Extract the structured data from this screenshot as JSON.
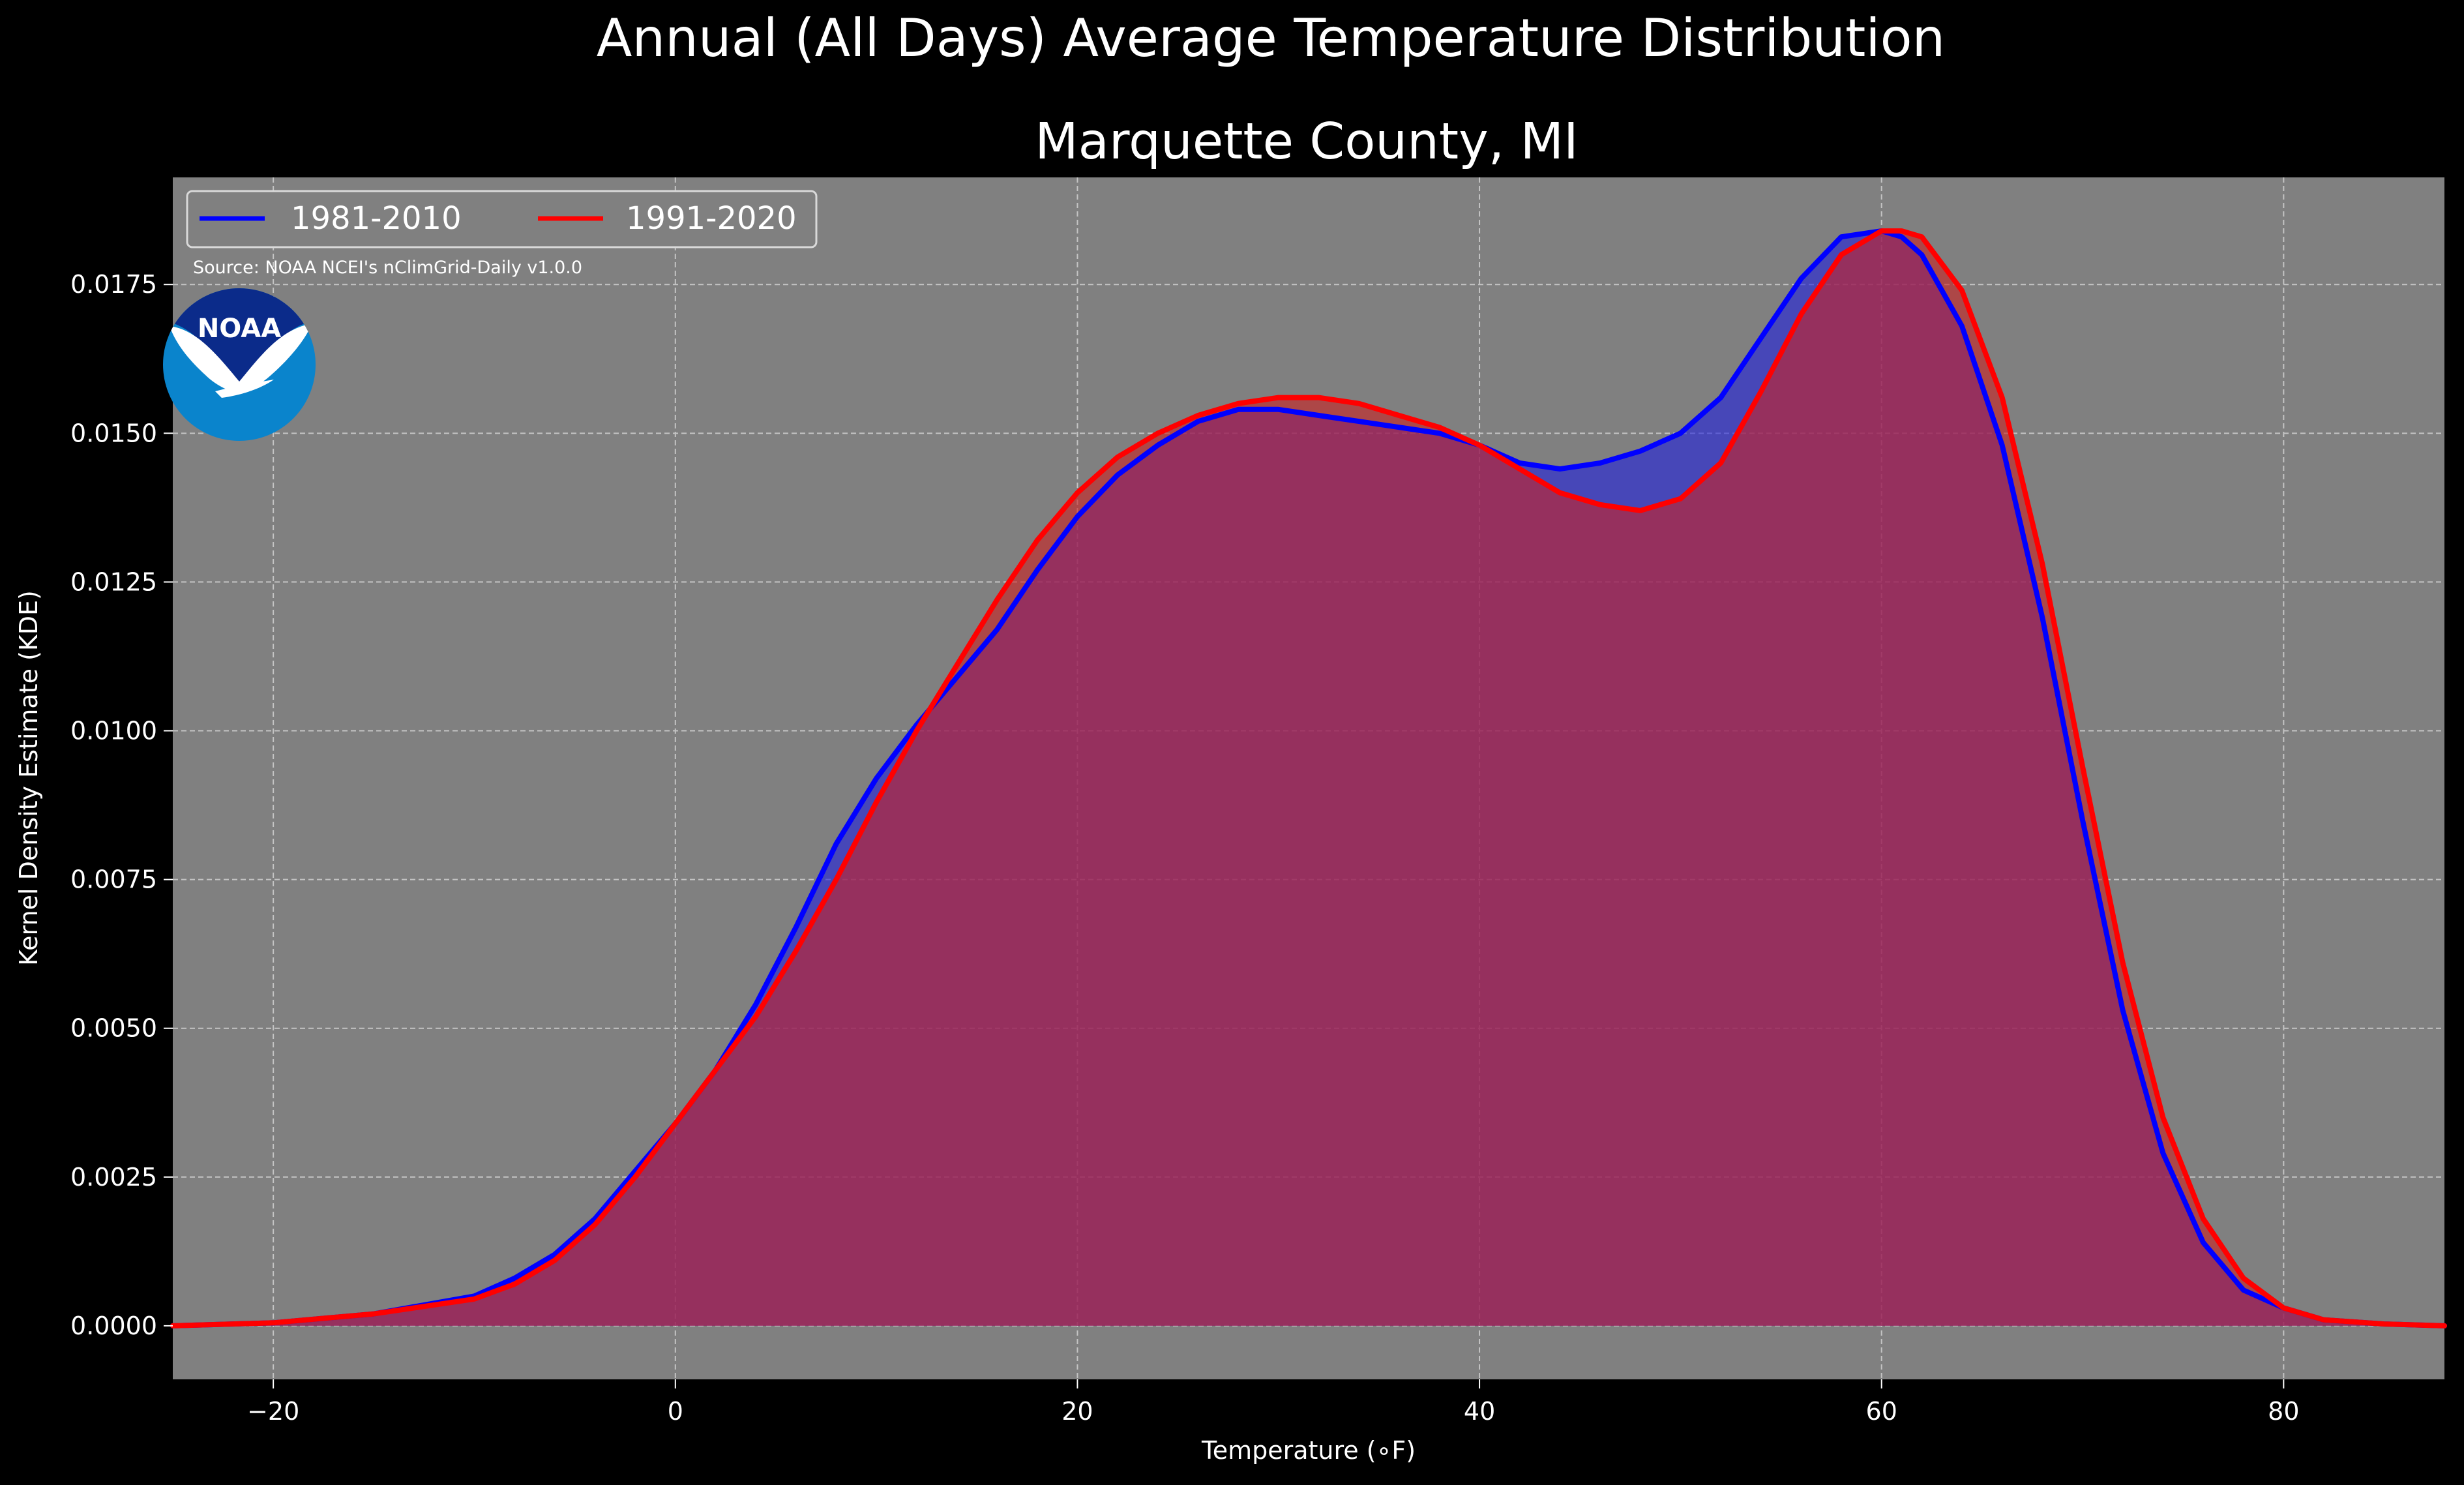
{
  "chart_data": {
    "type": "area",
    "suptitle": "Annual (All Days) Average Temperature Distribution",
    "title": "Marquette County, MI",
    "xlabel": "Temperature (∘F)",
    "ylabel": "Kernel Density Estimate (KDE)",
    "xlim": [
      -25,
      88
    ],
    "ylim": [
      -0.0009,
      0.0193
    ],
    "xticks": [
      -20,
      0,
      20,
      40,
      60,
      80
    ],
    "xtick_labels": [
      "−20",
      "0",
      "20",
      "40",
      "60",
      "80"
    ],
    "yticks": [
      0,
      0.0025,
      0.005,
      0.0075,
      0.01,
      0.0125,
      0.015,
      0.0175
    ],
    "ytick_labels": [
      "0.0000",
      "0.0025",
      "0.0050",
      "0.0075",
      "0.0100",
      "0.0125",
      "0.0150",
      "0.0175"
    ],
    "grid": true,
    "legend_position": "top-left",
    "source_note": "Source: NOAA NCEI's nClimGrid-Daily v1.0.0",
    "logo_text": "NOAA",
    "x": [
      -25,
      -20,
      -15,
      -10,
      -8,
      -6,
      -4,
      -2,
      0,
      2,
      4,
      6,
      8,
      10,
      12,
      14,
      16,
      18,
      20,
      22,
      24,
      26,
      28,
      30,
      32,
      34,
      36,
      38,
      40,
      42,
      44,
      46,
      48,
      50,
      52,
      54,
      56,
      58,
      60,
      61,
      62,
      64,
      66,
      68,
      70,
      72,
      74,
      76,
      78,
      80,
      82,
      85,
      88
    ],
    "series": [
      {
        "name": "1981-2010",
        "color": "#0000ff",
        "fill": "#2222dd",
        "values": [
          0.0,
          5e-05,
          0.0002,
          0.0005,
          0.0008,
          0.0012,
          0.0018,
          0.0026,
          0.0034,
          0.0043,
          0.0054,
          0.0067,
          0.0081,
          0.0092,
          0.0101,
          0.0109,
          0.0117,
          0.0127,
          0.0136,
          0.0143,
          0.0148,
          0.0152,
          0.0154,
          0.0154,
          0.0153,
          0.0152,
          0.0151,
          0.015,
          0.0148,
          0.0145,
          0.0144,
          0.0145,
          0.0147,
          0.015,
          0.0156,
          0.0166,
          0.0176,
          0.0183,
          0.0184,
          0.0183,
          0.018,
          0.0168,
          0.0148,
          0.0119,
          0.0085,
          0.0053,
          0.0029,
          0.0014,
          0.0006,
          0.0003,
          0.0001,
          3e-05,
          0.0
        ]
      },
      {
        "name": "1991-2020",
        "color": "#ff0000",
        "fill": "#cc2222",
        "values": [
          0.0,
          5e-05,
          0.0002,
          0.00045,
          0.0007,
          0.0011,
          0.0017,
          0.0025,
          0.0034,
          0.0043,
          0.0052,
          0.0063,
          0.0075,
          0.0088,
          0.01,
          0.0111,
          0.0122,
          0.0132,
          0.014,
          0.0146,
          0.015,
          0.0153,
          0.0155,
          0.0156,
          0.0156,
          0.0155,
          0.0153,
          0.0151,
          0.0148,
          0.0144,
          0.014,
          0.0138,
          0.0137,
          0.0139,
          0.0145,
          0.0157,
          0.017,
          0.018,
          0.0184,
          0.0184,
          0.0183,
          0.0174,
          0.0156,
          0.0128,
          0.0094,
          0.0061,
          0.0035,
          0.0018,
          0.0008,
          0.0003,
          0.0001,
          3e-05,
          0.0
        ]
      }
    ]
  }
}
